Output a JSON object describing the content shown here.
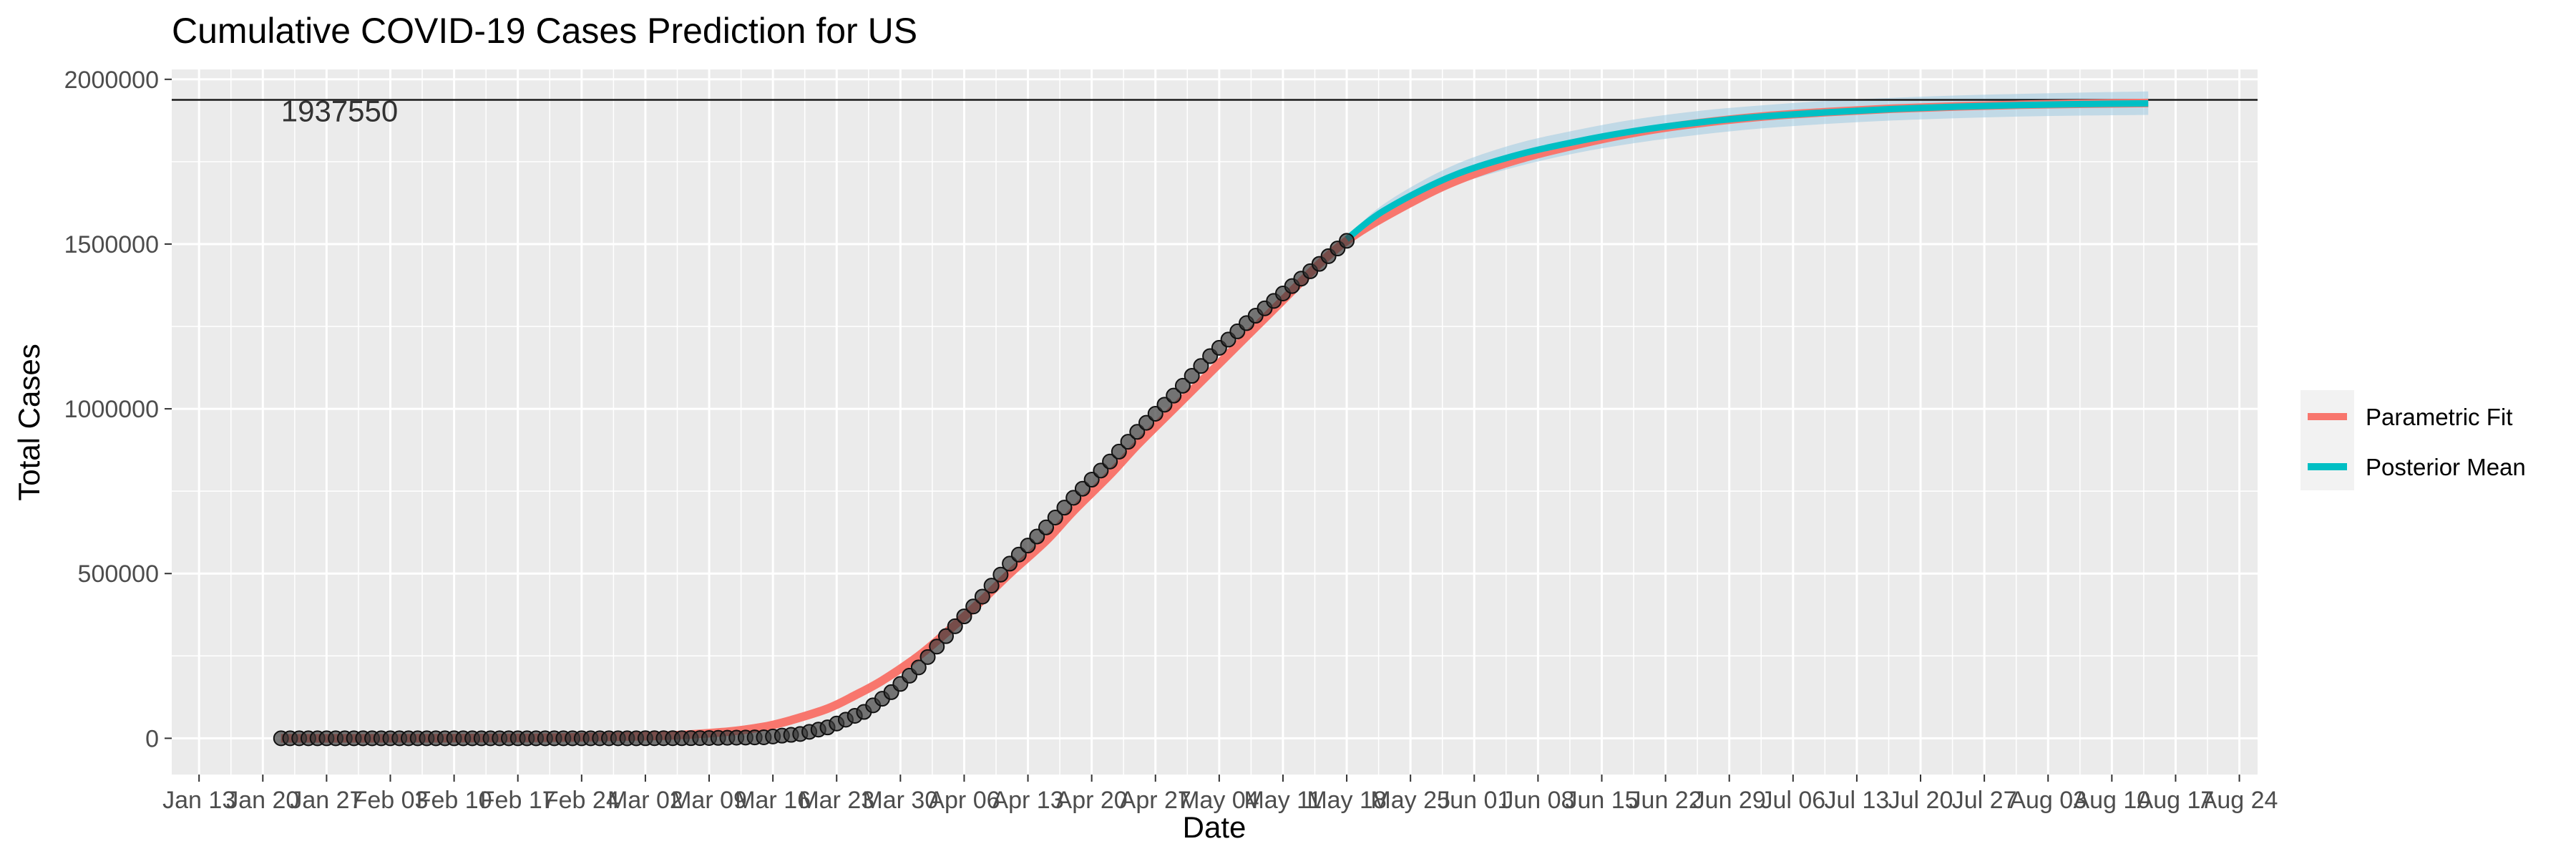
{
  "chart_data": {
    "type": "line",
    "title": "Cumulative COVID-19 Cases Prediction for US",
    "xlabel": "Date",
    "ylabel": "Total Cases",
    "x_start": "2020-01-13",
    "x_end": "2020-08-24",
    "xlim": [
      "2020-01-10",
      "2020-08-26"
    ],
    "ylim": [
      -110000,
      2030000
    ],
    "y_ticks": [
      0,
      500000,
      1000000,
      1500000,
      2000000
    ],
    "y_tick_labels": [
      "0",
      "500000",
      "1000000",
      "1500000",
      "2000000"
    ],
    "x_tick_labels": [
      "Jan 13",
      "Jan 20",
      "Jan 27",
      "Feb 03",
      "Feb 10",
      "Feb 17",
      "Feb 24",
      "Mar 02",
      "Mar 09",
      "Mar 16",
      "Mar 23",
      "Mar 30",
      "Apr 06",
      "Apr 13",
      "Apr 20",
      "Apr 27",
      "May 04",
      "May 11",
      "May 18",
      "May 25",
      "Jun 01",
      "Jun 08",
      "Jun 15",
      "Jun 22",
      "Jun 29",
      "Jul 06",
      "Jul 13",
      "Jul 20",
      "Jul 27",
      "Aug 03",
      "Aug 10",
      "Aug 17",
      "Aug 24"
    ],
    "x_tick_dates": [
      "2020-01-13",
      "2020-01-20",
      "2020-01-27",
      "2020-02-03",
      "2020-02-10",
      "2020-02-17",
      "2020-02-24",
      "2020-03-02",
      "2020-03-09",
      "2020-03-16",
      "2020-03-23",
      "2020-03-30",
      "2020-04-06",
      "2020-04-13",
      "2020-04-20",
      "2020-04-27",
      "2020-05-04",
      "2020-05-11",
      "2020-05-18",
      "2020-05-25",
      "2020-06-01",
      "2020-06-08",
      "2020-06-15",
      "2020-06-22",
      "2020-06-29",
      "2020-07-06",
      "2020-07-13",
      "2020-07-20",
      "2020-07-27",
      "2020-08-03",
      "2020-08-10",
      "2020-08-17",
      "2020-08-24"
    ],
    "grid": true,
    "legend_position": "right",
    "hline": {
      "value": 1937550,
      "label": "1937550"
    },
    "series": [
      {
        "name": "Parametric Fit",
        "color": "#F8766D",
        "x": [
          "2020-01-22",
          "2020-02-05",
          "2020-02-19",
          "2020-03-04",
          "2020-03-11",
          "2020-03-15",
          "2020-03-18",
          "2020-03-22",
          "2020-03-25",
          "2020-03-28",
          "2020-04-01",
          "2020-04-04",
          "2020-04-08",
          "2020-04-11",
          "2020-04-15",
          "2020-04-18",
          "2020-04-22",
          "2020-04-25",
          "2020-04-29",
          "2020-05-03",
          "2020-05-07",
          "2020-05-11",
          "2020-05-15",
          "2020-05-18",
          "2020-05-22",
          "2020-05-29",
          "2020-06-05",
          "2020-06-12",
          "2020-06-19",
          "2020-06-26",
          "2020-07-03",
          "2020-07-10",
          "2020-07-17",
          "2020-07-24",
          "2020-07-31",
          "2020-08-07",
          "2020-08-14"
        ],
        "y": [
          0,
          200,
          1500,
          8000,
          20000,
          35000,
          55000,
          90000,
          130000,
          175000,
          250000,
          320000,
          420000,
          500000,
          600000,
          690000,
          800000,
          890000,
          1000000,
          1110000,
          1220000,
          1330000,
          1440000,
          1510000,
          1580000,
          1680000,
          1750000,
          1800000,
          1840000,
          1868000,
          1888000,
          1901000,
          1911000,
          1918000,
          1923000,
          1926000,
          1928000
        ]
      },
      {
        "name": "Posterior Mean",
        "color": "#00BFC4",
        "x": [
          "2020-05-18",
          "2020-05-22",
          "2020-05-29",
          "2020-06-05",
          "2020-06-12",
          "2020-06-19",
          "2020-06-26",
          "2020-07-03",
          "2020-07-10",
          "2020-07-17",
          "2020-07-24",
          "2020-07-31",
          "2020-08-07",
          "2020-08-14"
        ],
        "y": [
          1515000,
          1600000,
          1700000,
          1765000,
          1810000,
          1845000,
          1870000,
          1888000,
          1900000,
          1910000,
          1917000,
          1922000,
          1925000,
          1927000
        ],
        "band_lower": [
          1510000,
          1580000,
          1670000,
          1730000,
          1775000,
          1808000,
          1833000,
          1852000,
          1865000,
          1875000,
          1882000,
          1887000,
          1890000,
          1892000
        ],
        "band_upper": [
          1520000,
          1620000,
          1730000,
          1800000,
          1845000,
          1880000,
          1905000,
          1922000,
          1935000,
          1944000,
          1951000,
          1956000,
          1960000,
          1963000
        ]
      }
    ],
    "observed": {
      "x_start": "2020-01-22",
      "x_end": "2020-05-18",
      "knots_x": [
        "2020-01-22",
        "2020-02-29",
        "2020-03-08",
        "2020-03-15",
        "2020-03-19",
        "2020-03-22",
        "2020-03-26",
        "2020-03-29",
        "2020-04-01",
        "2020-04-04",
        "2020-04-08",
        "2020-04-11",
        "2020-04-15",
        "2020-04-18",
        "2020-04-22",
        "2020-04-25",
        "2020-04-29",
        "2020-05-03",
        "2020-05-07",
        "2020-05-11",
        "2020-05-15",
        "2020-05-18"
      ],
      "knots_y": [
        0,
        0,
        500,
        3000,
        13000,
        33000,
        80000,
        140000,
        215000,
        310000,
        430000,
        530000,
        640000,
        730000,
        840000,
        930000,
        1040000,
        1160000,
        1260000,
        1350000,
        1440000,
        1510000
      ]
    }
  }
}
